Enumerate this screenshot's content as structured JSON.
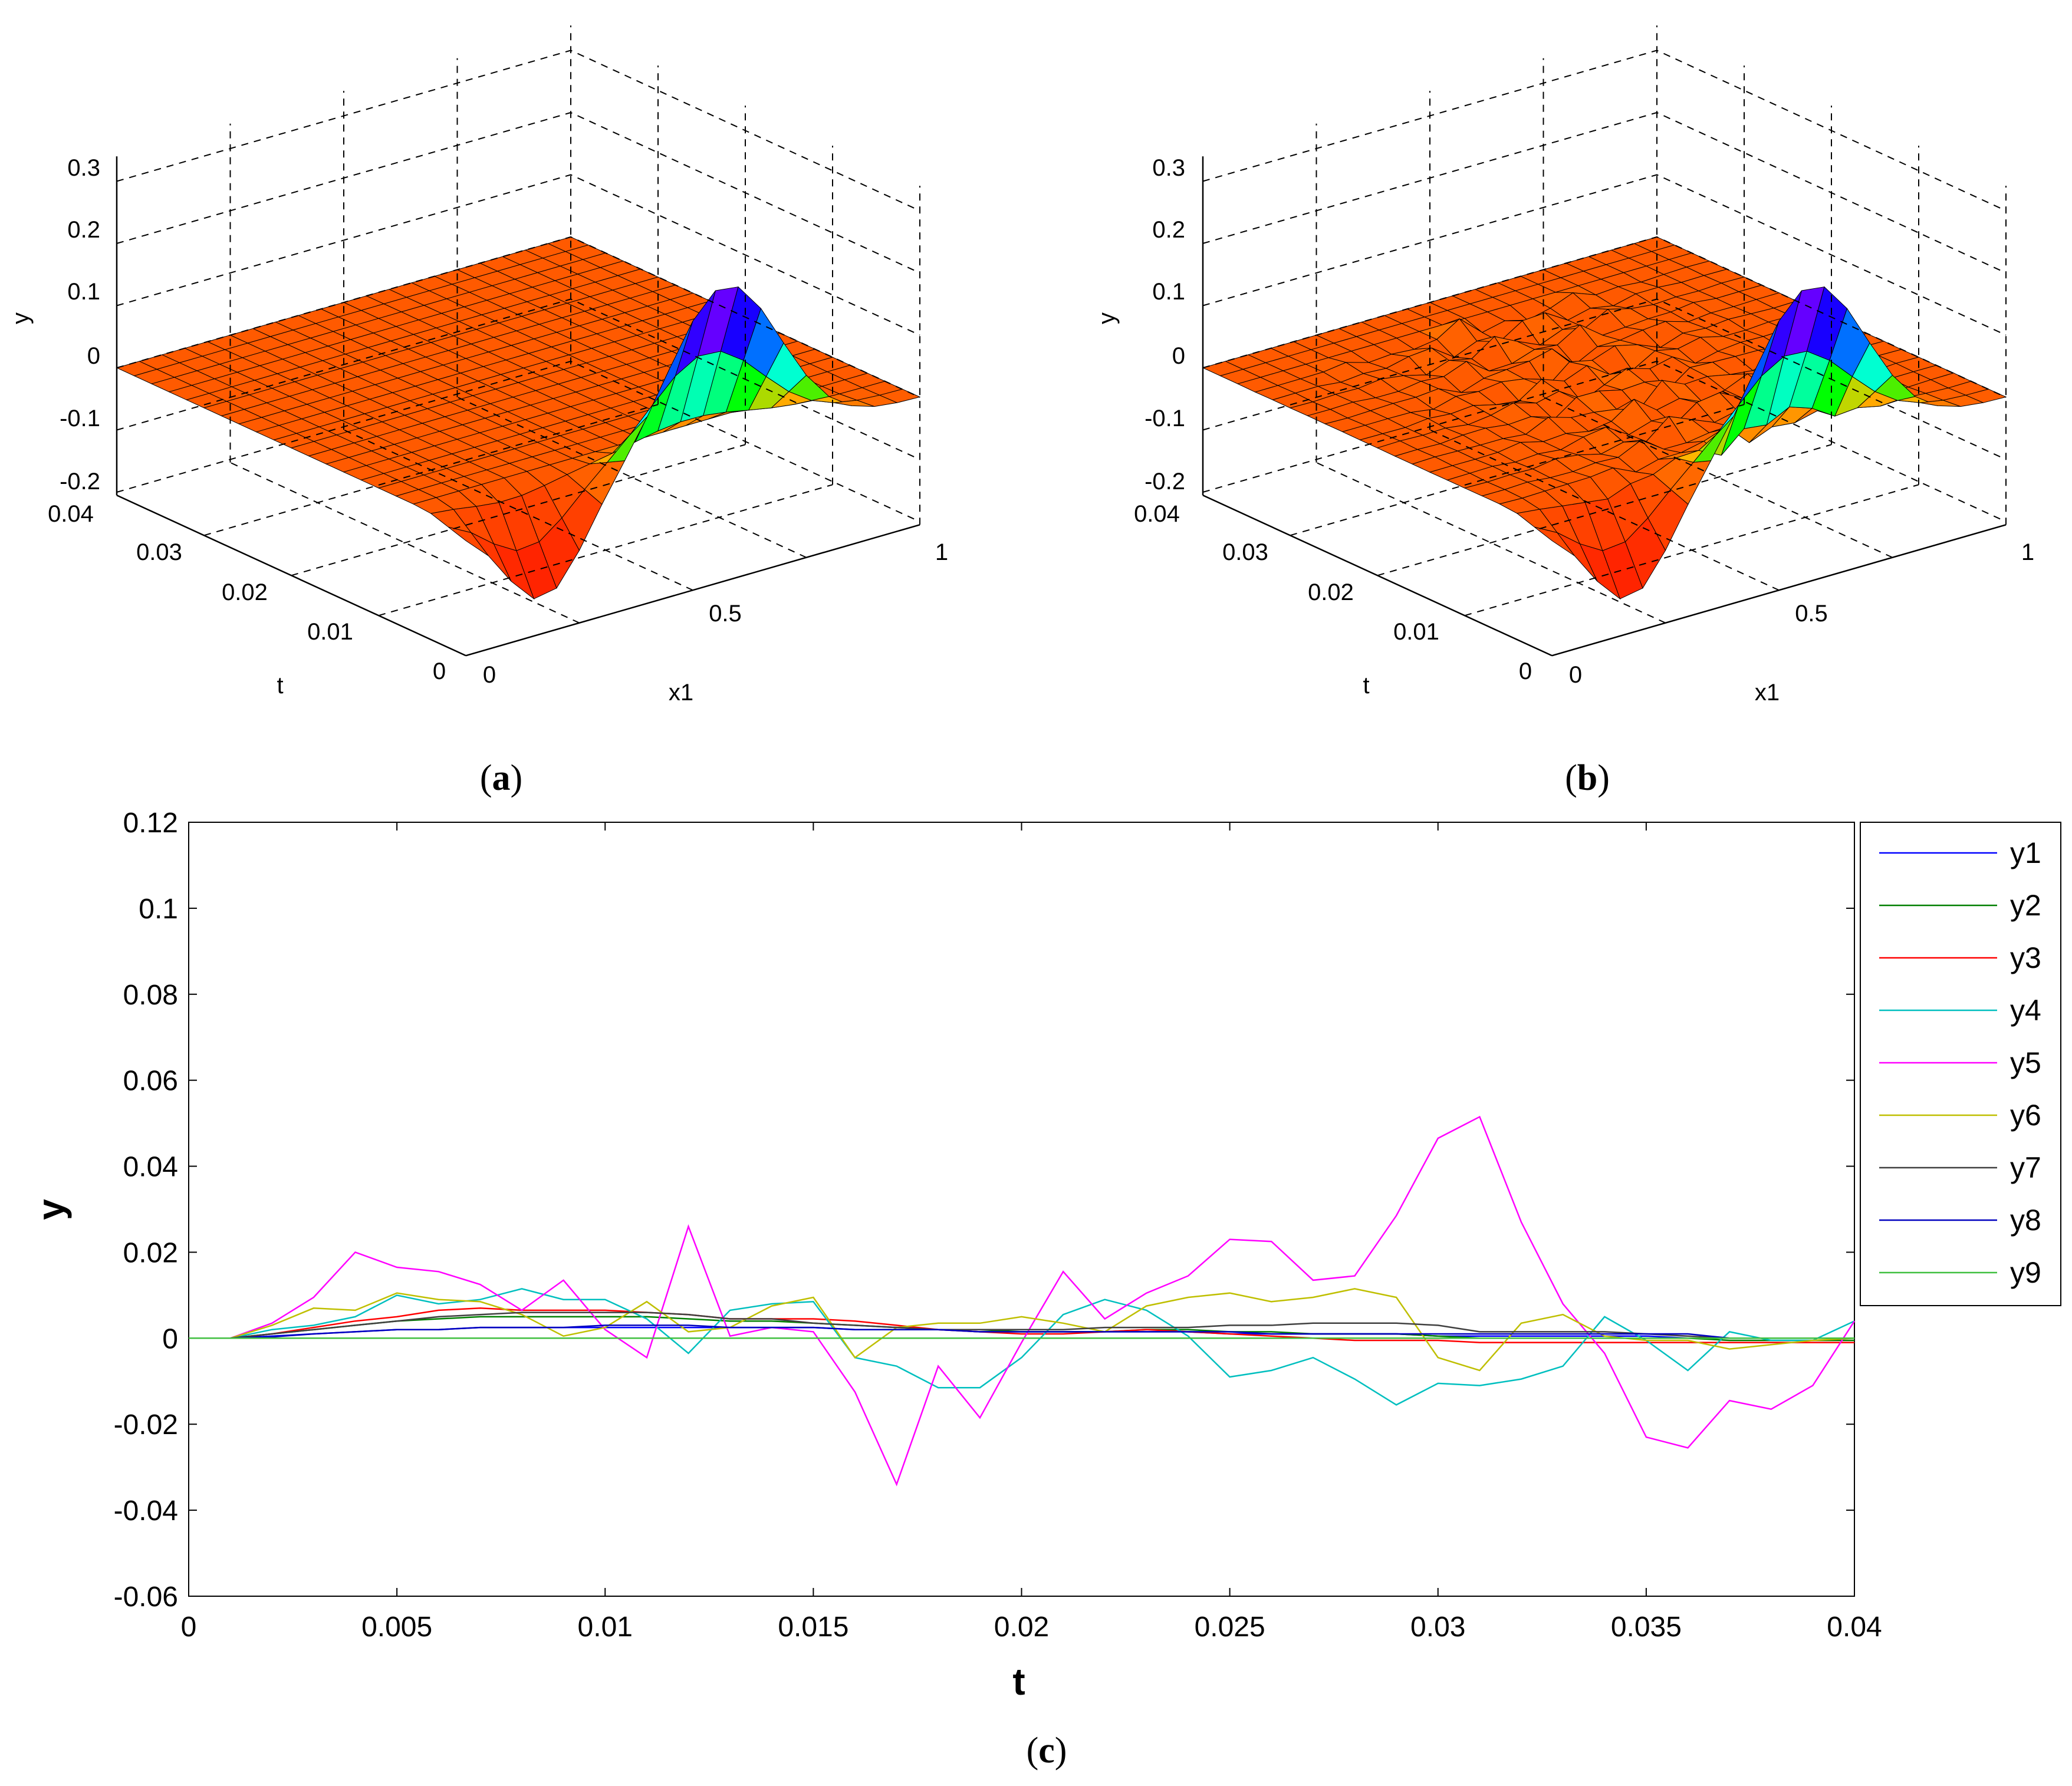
{
  "panel_a": {
    "caption_open": "(",
    "caption_letter": "a",
    "caption_close": ")",
    "ylabel": "y",
    "xlabel": "x1",
    "tlabel": "t",
    "z_ticks": [
      "0.3",
      "0.2",
      "0.1",
      "0",
      "-0.1",
      "-0.2"
    ],
    "t_ticks": [
      "0.04",
      "0.03",
      "0.02",
      "0.01",
      "0"
    ],
    "x_ticks": [
      "0",
      "0.5",
      "1"
    ]
  },
  "panel_b": {
    "caption_open": "(",
    "caption_letter": "b",
    "caption_close": ")",
    "ylabel": "y",
    "xlabel": "x1",
    "tlabel": "t",
    "z_ticks": [
      "0.3",
      "0.2",
      "0.1",
      "0",
      "-0.1",
      "-0.2"
    ],
    "t_ticks": [
      "0.04",
      "0.03",
      "0.02",
      "0.01",
      "0"
    ],
    "x_ticks": [
      "0",
      "0.5",
      "1"
    ]
  },
  "panel_c": {
    "caption_open": "(",
    "caption_letter": "c",
    "caption_close": ")"
  },
  "chart_data": [
    {
      "type": "surface",
      "panel": "a",
      "xlabel": "x1",
      "ylabel": "t",
      "zlabel": "y",
      "xlim": [
        0,
        1
      ],
      "ylim": [
        0,
        0.04
      ],
      "zlim": [
        -0.2,
        0.3
      ],
      "description_values": "Surface ~0 over most of domain; at t=0 the profile is y = -0.15 at x1=0.2, peaking ~0.27 around x1=0.55, returning to 0 at x1=1"
    },
    {
      "type": "surface",
      "panel": "b",
      "xlabel": "x1",
      "ylabel": "t",
      "zlabel": "y",
      "xlim": [
        0,
        1
      ],
      "ylim": [
        0,
        0.04
      ],
      "zlim": [
        -0.2,
        0.3
      ]
    },
    {
      "type": "line",
      "panel": "c",
      "xlabel": "t",
      "ylabel": "y",
      "xlim": [
        0,
        0.04
      ],
      "ylim": [
        -0.06,
        0.12
      ],
      "x_ticks": [
        "0",
        "0.005",
        "0.01",
        "0.015",
        "0.02",
        "0.025",
        "0.03",
        "0.035",
        "0.04"
      ],
      "y_ticks": [
        "0.12",
        "0.1",
        "0.08",
        "0.06",
        "0.04",
        "0.02",
        "0",
        "-0.02",
        "-0.04",
        "-0.06"
      ],
      "x": [
        0,
        0.001,
        0.002,
        0.003,
        0.004,
        0.005,
        0.006,
        0.007,
        0.008,
        0.009,
        0.01,
        0.011,
        0.012,
        0.013,
        0.014,
        0.015,
        0.016,
        0.017,
        0.018,
        0.019,
        0.02,
        0.021,
        0.022,
        0.023,
        0.024,
        0.025,
        0.026,
        0.027,
        0.028,
        0.029,
        0.03,
        0.031,
        0.032,
        0.033,
        0.034,
        0.035,
        0.036,
        0.037,
        0.038,
        0.039,
        0.04
      ],
      "series": [
        {
          "name": "y1",
          "color": "#0000ff",
          "values": [
            0,
            0,
            0.0005,
            0.001,
            0.0015,
            0.002,
            0.002,
            0.0025,
            0.0025,
            0.0025,
            0.0025,
            0.0025,
            0.0025,
            0.0025,
            0.0025,
            0.0025,
            0.002,
            0.002,
            0.002,
            0.0015,
            0.0015,
            0.0015,
            0.0015,
            0.0015,
            0.0015,
            0.001,
            0.001,
            0.001,
            0.001,
            0.001,
            0.0005,
            0.0005,
            0.0005,
            0.0005,
            0.0005,
            0.0005,
            0,
            0,
            0,
            0,
            0
          ]
        },
        {
          "name": "y2",
          "color": "#007f00",
          "values": [
            0,
            0,
            0.001,
            0.002,
            0.003,
            0.004,
            0.0045,
            0.005,
            0.005,
            0.005,
            0.005,
            0.005,
            0.0045,
            0.004,
            0.004,
            0.0035,
            0.003,
            0.0025,
            0.002,
            0.002,
            0.0015,
            0.0015,
            0.0015,
            0.002,
            0.002,
            0.0015,
            0.0015,
            0.001,
            0.001,
            0.001,
            0.0005,
            0,
            0,
            0,
            0,
            0,
            0,
            -0.0005,
            -0.0005,
            -0.0005,
            -0.0005
          ]
        },
        {
          "name": "y3",
          "color": "#ff0000",
          "values": [
            0,
            0,
            0.001,
            0.0025,
            0.004,
            0.005,
            0.0065,
            0.007,
            0.0065,
            0.0065,
            0.0065,
            0.006,
            0.0055,
            0.0045,
            0.0045,
            0.0045,
            0.004,
            0.003,
            0.002,
            0.0015,
            0.001,
            0.001,
            0.0015,
            0.002,
            0.0015,
            0.001,
            0.0005,
            0,
            -0.0005,
            -0.0005,
            -0.0005,
            -0.001,
            -0.001,
            -0.001,
            -0.001,
            -0.001,
            -0.001,
            -0.001,
            -0.001,
            -0.001,
            -0.001
          ]
        },
        {
          "name": "y4",
          "color": "#00bfbf",
          "values": [
            0,
            0,
            0.002,
            0.003,
            0.005,
            0.01,
            0.008,
            0.009,
            0.0115,
            0.009,
            0.009,
            0.0045,
            -0.0035,
            0.0065,
            0.008,
            0.0085,
            -0.0045,
            -0.0065,
            -0.0115,
            -0.0115,
            -0.0045,
            0.0055,
            0.009,
            0.0065,
            0.0005,
            -0.009,
            -0.0075,
            -0.0045,
            -0.0095,
            -0.0155,
            -0.0105,
            -0.011,
            -0.0095,
            -0.0065,
            0.005,
            -0.0005,
            -0.0075,
            0.0015,
            -0.0005,
            -0.0005,
            0.004
          ]
        },
        {
          "name": "y5",
          "color": "#ff00ff",
          "values": [
            0,
            0,
            0.0035,
            0.0095,
            0.02,
            0.0165,
            0.0155,
            0.0125,
            0.0065,
            0.0135,
            0.002,
            -0.0045,
            0.026,
            0.0005,
            0.0025,
            0.0015,
            -0.0125,
            -0.034,
            -0.0065,
            -0.0185,
            -0.001,
            0.0155,
            0.0045,
            0.0105,
            0.0145,
            0.023,
            0.0225,
            0.0135,
            0.0145,
            0.0285,
            0.0465,
            0.0515,
            0.027,
            0.008,
            -0.0035,
            -0.023,
            -0.0255,
            -0.0145,
            -0.0165,
            -0.011,
            0.004
          ]
        },
        {
          "name": "y6",
          "color": "#bfbf00",
          "values": [
            0,
            0,
            0.003,
            0.007,
            0.0065,
            0.0105,
            0.009,
            0.0085,
            0.0055,
            0.0005,
            0.0025,
            0.0085,
            0.0015,
            0.0025,
            0.0075,
            0.0095,
            -0.0045,
            0.0025,
            0.0035,
            0.0035,
            0.005,
            0.0035,
            0.0015,
            0.0075,
            0.0095,
            0.0105,
            0.0085,
            0.0095,
            0.0115,
            0.0095,
            -0.0045,
            -0.0075,
            0.0035,
            0.0055,
            0.0005,
            -0.0005,
            -0.0005,
            -0.0025,
            -0.0015,
            -0.0005,
            0
          ]
        },
        {
          "name": "y7",
          "color": "#3f3f3f",
          "values": [
            0,
            0,
            0.001,
            0.002,
            0.003,
            0.004,
            0.005,
            0.0055,
            0.006,
            0.006,
            0.006,
            0.006,
            0.0055,
            0.0045,
            0.0045,
            0.0035,
            0.003,
            0.0025,
            0.002,
            0.002,
            0.002,
            0.002,
            0.0025,
            0.0025,
            0.0025,
            0.003,
            0.003,
            0.0035,
            0.0035,
            0.0035,
            0.003,
            0.0015,
            0.0015,
            0.0015,
            0.0015,
            0.001,
            0.0005,
            0,
            0,
            0,
            0
          ]
        },
        {
          "name": "y8",
          "color": "#0000bf",
          "values": [
            0,
            0,
            0.0003,
            0.001,
            0.0015,
            0.002,
            0.002,
            0.0025,
            0.0025,
            0.0025,
            0.003,
            0.003,
            0.003,
            0.0025,
            0.0025,
            0.0025,
            0.002,
            0.002,
            0.002,
            0.0015,
            0.0015,
            0.0015,
            0.0015,
            0.0015,
            0.0015,
            0.0015,
            0.001,
            0.001,
            0.001,
            0.001,
            0.001,
            0.001,
            0.001,
            0.001,
            0.001,
            0.001,
            0.001,
            0,
            0,
            0,
            0
          ]
        },
        {
          "name": "y9",
          "color": "#3fbf3f",
          "values": [
            0,
            0,
            0,
            0,
            0,
            0,
            0,
            0,
            0,
            0,
            0,
            0,
            0,
            0,
            0,
            0,
            0,
            0,
            0,
            0,
            0,
            0,
            0,
            0,
            0,
            0,
            0,
            0,
            0,
            0,
            0,
            0,
            0,
            0,
            0,
            0,
            0,
            0,
            0,
            0,
            0
          ]
        }
      ]
    }
  ]
}
